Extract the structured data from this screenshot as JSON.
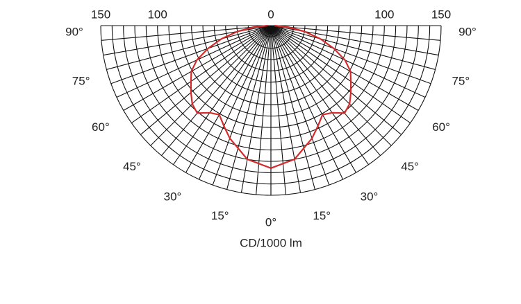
{
  "chart_data": {
    "type": "polar",
    "x_label": "CD/1000 lm",
    "rlim": [
      0,
      150
    ],
    "rticks": [
      0,
      100,
      150
    ],
    "rgrid": [
      10,
      20,
      30,
      40,
      50,
      60,
      70,
      80,
      90,
      100,
      110,
      120,
      130,
      140,
      150
    ],
    "angle_ticks": [
      {
        "value": 0,
        "label": "0°"
      },
      {
        "value": 15,
        "label": "15°"
      },
      {
        "value": 30,
        "label": "30°"
      },
      {
        "value": 45,
        "label": "45°"
      },
      {
        "value": 60,
        "label": "60°"
      },
      {
        "value": 75,
        "label": "75°"
      },
      {
        "value": 90,
        "label": "90°"
      }
    ],
    "angle_grid": [
      0,
      5,
      10,
      15,
      20,
      25,
      30,
      35,
      40,
      45,
      50,
      55,
      60,
      65,
      70,
      75,
      80,
      85,
      90
    ],
    "series": [
      {
        "color": "#d42a2a",
        "x": [
          0,
          10,
          20,
          25,
          30,
          35,
          40,
          45,
          50,
          55,
          60,
          65,
          70,
          75,
          80,
          85,
          90
        ],
        "values": [
          126,
          120,
          106,
          98,
          91,
          94,
          101,
          98,
          92,
          86,
          81,
          72,
          59,
          45,
          30,
          15,
          3
        ]
      }
    ]
  }
}
